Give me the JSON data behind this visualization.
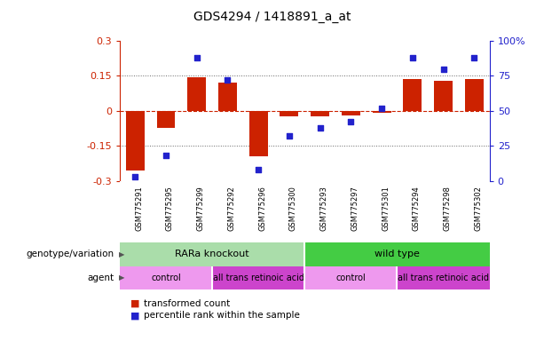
{
  "title": "GDS4294 / 1418891_a_at",
  "samples": [
    "GSM775291",
    "GSM775295",
    "GSM775299",
    "GSM775292",
    "GSM775296",
    "GSM775300",
    "GSM775293",
    "GSM775297",
    "GSM775301",
    "GSM775294",
    "GSM775298",
    "GSM775302"
  ],
  "bar_values": [
    -0.255,
    -0.075,
    0.145,
    0.12,
    -0.195,
    -0.025,
    -0.025,
    -0.02,
    -0.01,
    0.135,
    0.128,
    0.138
  ],
  "dot_values": [
    3,
    18,
    88,
    72,
    8,
    32,
    38,
    42,
    52,
    88,
    80,
    88
  ],
  "ylim_left": [
    -0.3,
    0.3
  ],
  "ylim_right": [
    0,
    100
  ],
  "yticks_left": [
    -0.3,
    -0.15,
    0,
    0.15,
    0.3
  ],
  "yticks_right": [
    0,
    25,
    50,
    75,
    100
  ],
  "ytick_labels_left": [
    "-0.3",
    "-0.15",
    "0",
    "0.15",
    "0.3"
  ],
  "ytick_labels_right": [
    "0",
    "25",
    "50",
    "75",
    "100%"
  ],
  "bar_color": "#cc2200",
  "dot_color": "#2222cc",
  "hline_color": "#cc2200",
  "dotted_color": "#666666",
  "genotype_groups": [
    {
      "label": "RARa knockout",
      "start": 0,
      "end": 6,
      "color": "#aaddaa"
    },
    {
      "label": "wild type",
      "start": 6,
      "end": 12,
      "color": "#44cc44"
    }
  ],
  "agent_groups": [
    {
      "label": "control",
      "start": 0,
      "end": 3,
      "color": "#ee99ee"
    },
    {
      "label": "all trans retinoic acid",
      "start": 3,
      "end": 6,
      "color": "#cc44cc"
    },
    {
      "label": "control",
      "start": 6,
      "end": 9,
      "color": "#ee99ee"
    },
    {
      "label": "all trans retinoic acid",
      "start": 9,
      "end": 12,
      "color": "#cc44cc"
    }
  ],
  "legend_bar_label": "transformed count",
  "legend_dot_label": "percentile rank within the sample",
  "genotype_label": "genotype/variation",
  "agent_label": "agent",
  "bg_color": "#ffffff",
  "tick_area_color": "#cccccc"
}
